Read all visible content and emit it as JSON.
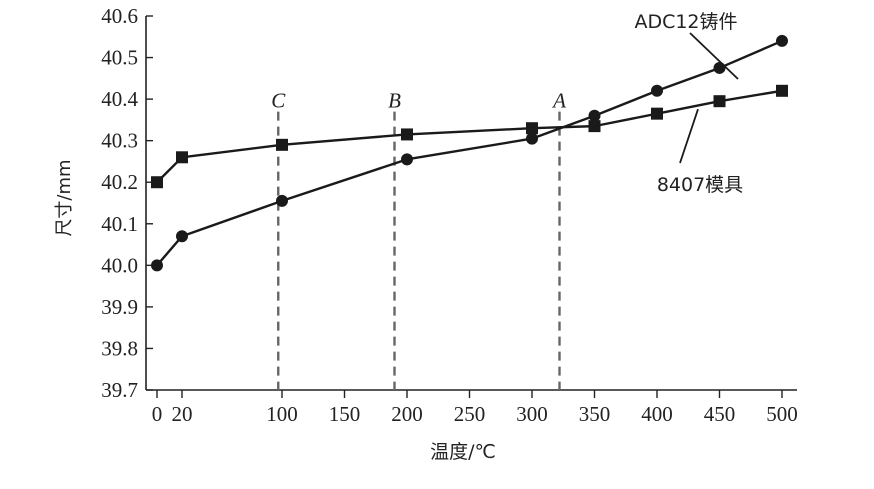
{
  "chart_data": {
    "type": "line",
    "xlabel": "温度/℃",
    "ylabel": "尺寸/mm",
    "xlim": [
      -5,
      500
    ],
    "ylim": [
      39.7,
      40.6
    ],
    "x_ticks": [
      0,
      20,
      100,
      150,
      200,
      250,
      300,
      350,
      400,
      450,
      500
    ],
    "x_tick_labels": [
      "0",
      "20",
      "100",
      "150",
      "200",
      "250",
      "300",
      "350",
      "400",
      "450",
      "500"
    ],
    "y_ticks": [
      39.7,
      39.8,
      39.9,
      40.0,
      40.1,
      40.2,
      40.3,
      40.4,
      40.5,
      40.6
    ],
    "y_tick_labels": [
      "39.7",
      "39.8",
      "39.9",
      "40.0",
      "40.1",
      "40.2",
      "40.3",
      "40.4",
      "40.5",
      "40.6"
    ],
    "grid": false,
    "series": [
      {
        "name": "ADC12铸件",
        "marker": "circle",
        "x": [
          0,
          20,
          100,
          200,
          300,
          350,
          400,
          450,
          500
        ],
        "y": [
          40.0,
          40.07,
          40.155,
          40.255,
          40.305,
          40.36,
          40.42,
          40.475,
          40.54
        ]
      },
      {
        "name": "8407模具",
        "marker": "square",
        "x": [
          0,
          20,
          100,
          200,
          300,
          350,
          400,
          450,
          500
        ],
        "y": [
          40.2,
          40.26,
          40.29,
          40.315,
          40.33,
          40.335,
          40.365,
          40.395,
          40.42
        ]
      }
    ],
    "reference_lines": [
      {
        "label": "C",
        "x": 97
      },
      {
        "label": "B",
        "x": 190
      },
      {
        "label": "A",
        "x": 322
      }
    ],
    "colors": {
      "line": "#1a1a1a",
      "marker": "#1a1a1a",
      "reference": "#666666",
      "axis": "#222222"
    }
  }
}
